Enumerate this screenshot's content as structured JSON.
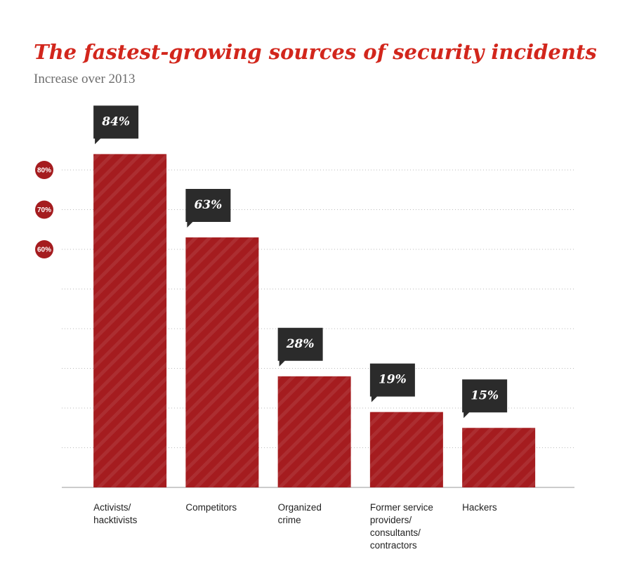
{
  "chart_data": {
    "type": "bar",
    "title": "The fastest-growing sources of security incidents",
    "subtitle": "Increase over 2013",
    "categories": [
      "Activists/\nhacktivists",
      "Competitors",
      "Organized\ncrime",
      "Former service\nproviders/\nconsultants/\ncontractors",
      "Hackers"
    ],
    "values": [
      84,
      63,
      28,
      19,
      15
    ],
    "value_labels": [
      "84%",
      "63%",
      "28%",
      "19%",
      "15%"
    ],
    "color": "#a51c1f",
    "ylim": [
      0,
      90
    ],
    "yticks": [
      {
        "value": 60,
        "label": "60%"
      },
      {
        "value": 70,
        "label": "70%"
      },
      {
        "value": 80,
        "label": "80%"
      }
    ],
    "gridlines": [
      10,
      20,
      30,
      40,
      50,
      60,
      70,
      80
    ],
    "grid": true
  }
}
